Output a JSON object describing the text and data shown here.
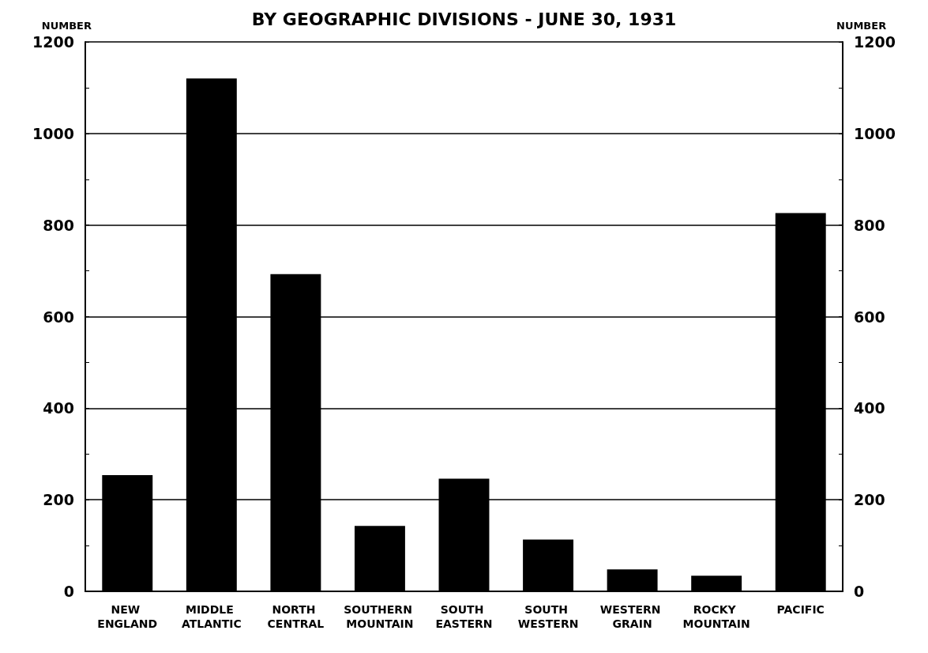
{
  "chart_data": {
    "type": "bar",
    "title": "BY GEOGRAPHIC DIVISIONS - JUNE 30, 1931",
    "ylabel": "NUMBER",
    "y2label": "NUMBER",
    "categories": [
      "NEW ENGLAND",
      "MIDDLE ATLANTIC",
      "NORTH CENTRAL",
      "SOUTHERN MOUNTAIN",
      "SOUTH EASTERN",
      "SOUTH WESTERN",
      "WESTERN GRAIN",
      "ROCKY MOUNTAIN",
      "PACIFIC"
    ],
    "values": [
      254,
      1120,
      693,
      143,
      246,
      113,
      48,
      34,
      826
    ],
    "color": "#000000",
    "ylim": [
      0,
      1200
    ],
    "yticks": [
      0,
      {
        "value": 100,
        "label": null
      },
      200,
      {
        "value": 300,
        "label": null
      },
      400,
      {
        "value": 500,
        "label": null
      },
      600,
      {
        "value": 700,
        "label": null
      },
      800,
      {
        "value": 900,
        "label": null
      },
      1000,
      {
        "value": 1100,
        "label": null
      },
      1200
    ],
    "y2lim": [
      0,
      1200
    ],
    "y2ticks": [
      0,
      {
        "value": 100,
        "label": null
      },
      200,
      {
        "value": 300,
        "label": null
      },
      400,
      {
        "value": 500,
        "label": null
      },
      600,
      {
        "value": 700,
        "label": null
      },
      800,
      {
        "value": 900,
        "label": null
      },
      1000,
      {
        "value": 1100,
        "label": null
      },
      1200
    ],
    "grid": "y"
  }
}
